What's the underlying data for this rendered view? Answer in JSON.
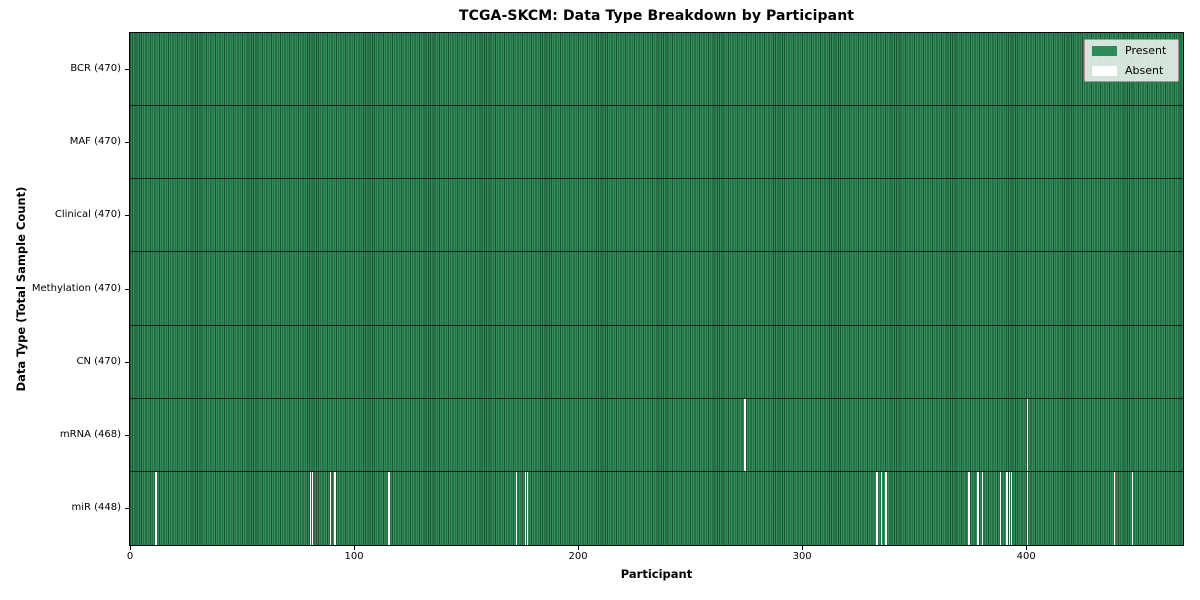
{
  "chart_data": {
    "type": "heatmap",
    "title": "TCGA-SKCM: Data Type Breakdown by Participant",
    "xlabel": "Participant",
    "ylabel": "Data Type (Total Sample Count)",
    "n_participants": 470,
    "x_ticks": [
      0,
      100,
      200,
      300,
      400
    ],
    "present_color": "#2e8b57",
    "absent_color": "#ffffff",
    "cell_edge_color": "#1b4d30",
    "legend_position": "upper right",
    "grid": false,
    "legend": [
      {
        "label": "Present",
        "color": "#2e8b57"
      },
      {
        "label": "Absent",
        "color": "#ffffff"
      }
    ],
    "rows": [
      {
        "label": "BCR (470)",
        "data_type": "BCR",
        "present_count": 470,
        "absent_participants": []
      },
      {
        "label": "MAF (470)",
        "data_type": "MAF",
        "present_count": 470,
        "absent_participants": []
      },
      {
        "label": "Clinical (470)",
        "data_type": "Clinical",
        "present_count": 470,
        "absent_participants": []
      },
      {
        "label": "Methylation (470)",
        "data_type": "Methylation",
        "present_count": 470,
        "absent_participants": []
      },
      {
        "label": "CN (470)",
        "data_type": "CN",
        "present_count": 470,
        "absent_participants": []
      },
      {
        "label": "mRNA (468)",
        "data_type": "mRNA",
        "present_count": 468,
        "absent_participants": [
          274,
          400
        ]
      },
      {
        "label": "miR (448)",
        "data_type": "miR",
        "present_count": 448,
        "absent_participants": [
          11,
          80,
          81,
          89,
          91,
          115,
          172,
          176,
          177,
          333,
          335,
          337,
          374,
          378,
          380,
          388,
          391,
          392,
          393,
          400,
          439,
          447
        ]
      }
    ]
  }
}
